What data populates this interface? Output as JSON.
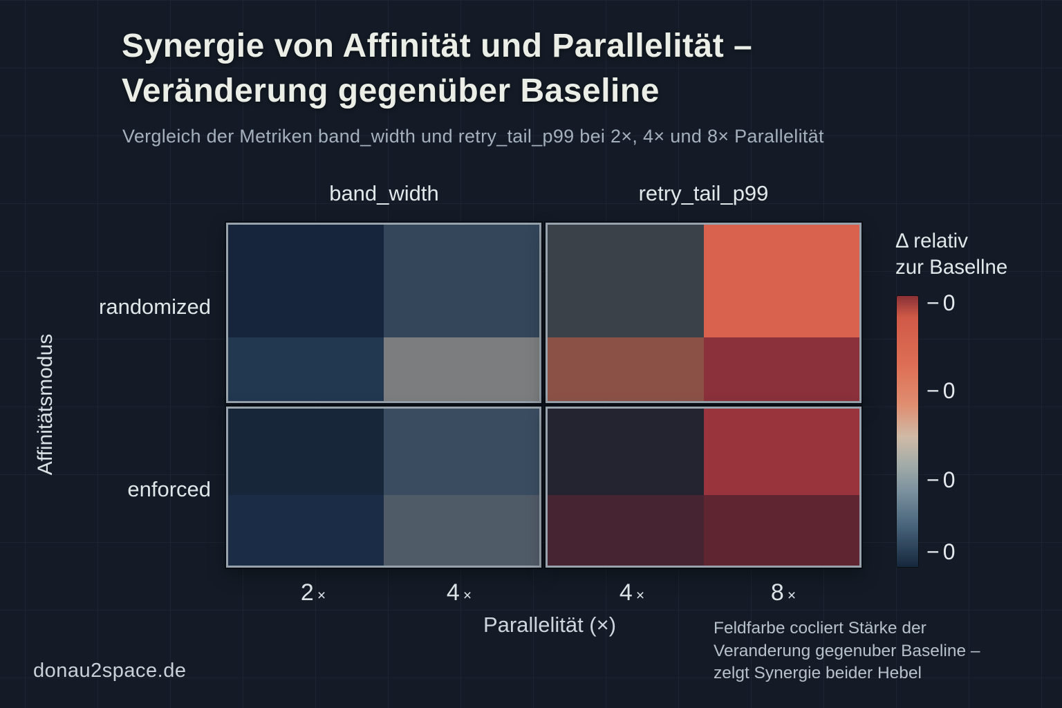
{
  "page": {
    "title": "Synergie von Affinität und Parallelität –\nVeränderung gegenüber Baseline",
    "subtitle": "Vergleich der Metriken band_width und retry_tail_p99 bei 2×, 4× und 8× Parallelität",
    "annotation": "Feldfarbe cocliert Stärke der\nVeranderung gegenuber Baseline –\nzelgt Synergie beider Hebel",
    "watermark": "donau2space.de"
  },
  "chart_data": {
    "type": "heatmap",
    "title": "Synergie von Affinität und Parallelität – Veränderung gegenüber Baseline",
    "subtitle": "Vergleich der Metriken band_width und retry_tail_p99 bei 2×, 4× und 8× Parallelität",
    "x_axis_label": "Parallelität (×)",
    "y_axis_label": "Affinitätsmodus",
    "row_categories": [
      "randomized",
      "enforced"
    ],
    "x_tick_labels": [
      "2×",
      "4×",
      "4×",
      "8×"
    ],
    "grid": true,
    "legend_position": "right",
    "facets": [
      {
        "metric": "band_width",
        "columns": [
          "2×",
          "4×"
        ],
        "cells": [
          [
            {
              "row": "randomized",
              "column": "2×",
              "color_top": "#16253b",
              "color_bottom": "#223750"
            },
            {
              "row": "randomized",
              "column": "4×",
              "color_top": "#33465a",
              "color_bottom": "#7b7d7f"
            }
          ],
          [
            {
              "row": "enforced",
              "column": "2×",
              "color_top": "#172639",
              "color_bottom": "#1b2d46"
            },
            {
              "row": "enforced",
              "column": "4×",
              "color_top": "#3a4c60",
              "color_bottom": "#505b68"
            }
          ]
        ]
      },
      {
        "metric": "retry_tail_p99",
        "columns": [
          "4×",
          "8×"
        ],
        "cells": [
          [
            {
              "row": "randomized",
              "column": "4×",
              "color_top": "#3b4149",
              "color_bottom": "#8b5146"
            },
            {
              "row": "randomized",
              "column": "8×",
              "color_top": "#d9624e",
              "color_bottom": "#8a313b"
            }
          ],
          [
            {
              "row": "enforced",
              "column": "4×",
              "color_top": "#242431",
              "color_bottom": "#462431"
            },
            {
              "row": "enforced",
              "column": "8×",
              "color_top": "#99343d",
              "color_bottom": "#5f2530"
            }
          ]
        ]
      }
    ],
    "colorbar": {
      "title": "Δ relativ\nzur Basellne",
      "tick_labels": [
        "−0",
        "−0",
        "−0",
        "−0"
      ],
      "gradient_stops": [
        {
          "pos": 0,
          "color": "#8a3136"
        },
        {
          "pos": 8,
          "color": "#d05a48"
        },
        {
          "pos": 25,
          "color": "#dd6e54"
        },
        {
          "pos": 40,
          "color": "#e08d70"
        },
        {
          "pos": 52,
          "color": "#cfbaa6"
        },
        {
          "pos": 62,
          "color": "#a4aca8"
        },
        {
          "pos": 72,
          "color": "#7b919e"
        },
        {
          "pos": 85,
          "color": "#47637a"
        },
        {
          "pos": 100,
          "color": "#16273c"
        }
      ]
    }
  },
  "colors": {
    "background": "#141b26",
    "panel_border": "#98a2ac",
    "title_text": "#ebeee6",
    "subtitle_text": "#a5b0bd",
    "annotation_text": "#b6c1cb"
  }
}
